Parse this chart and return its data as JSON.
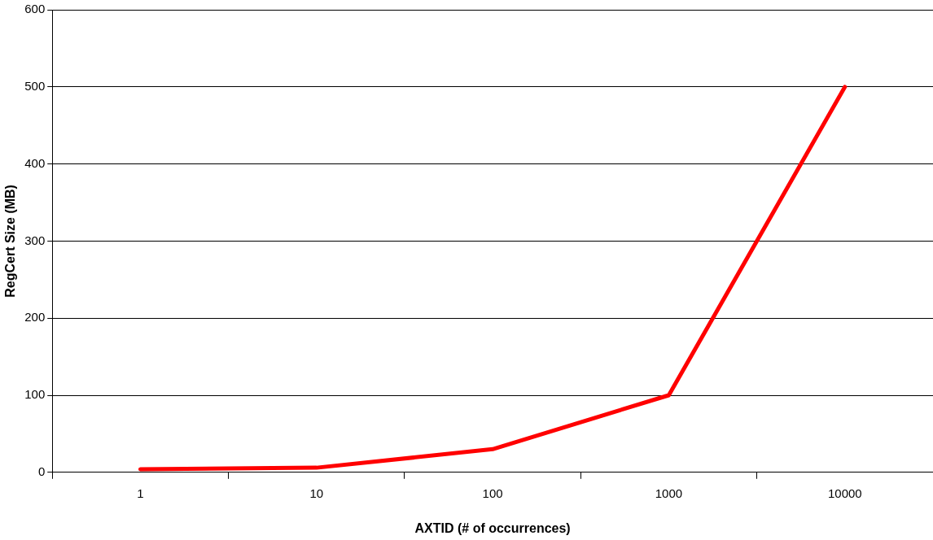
{
  "chart_data": {
    "type": "line",
    "xlabel": "AXTID (# of occurrences)",
    "ylabel": "RegCert Size (MB)",
    "categories": [
      "1",
      "10",
      "100",
      "1000",
      "10000"
    ],
    "series": [
      {
        "color": "#ff0000",
        "values": [
          4,
          6,
          30,
          100,
          500
        ]
      }
    ],
    "ylim": [
      0,
      600
    ],
    "yticks": [
      0,
      100,
      200,
      300,
      400,
      500,
      600
    ],
    "grid": "y",
    "marker": "none",
    "line_style": "solid"
  }
}
